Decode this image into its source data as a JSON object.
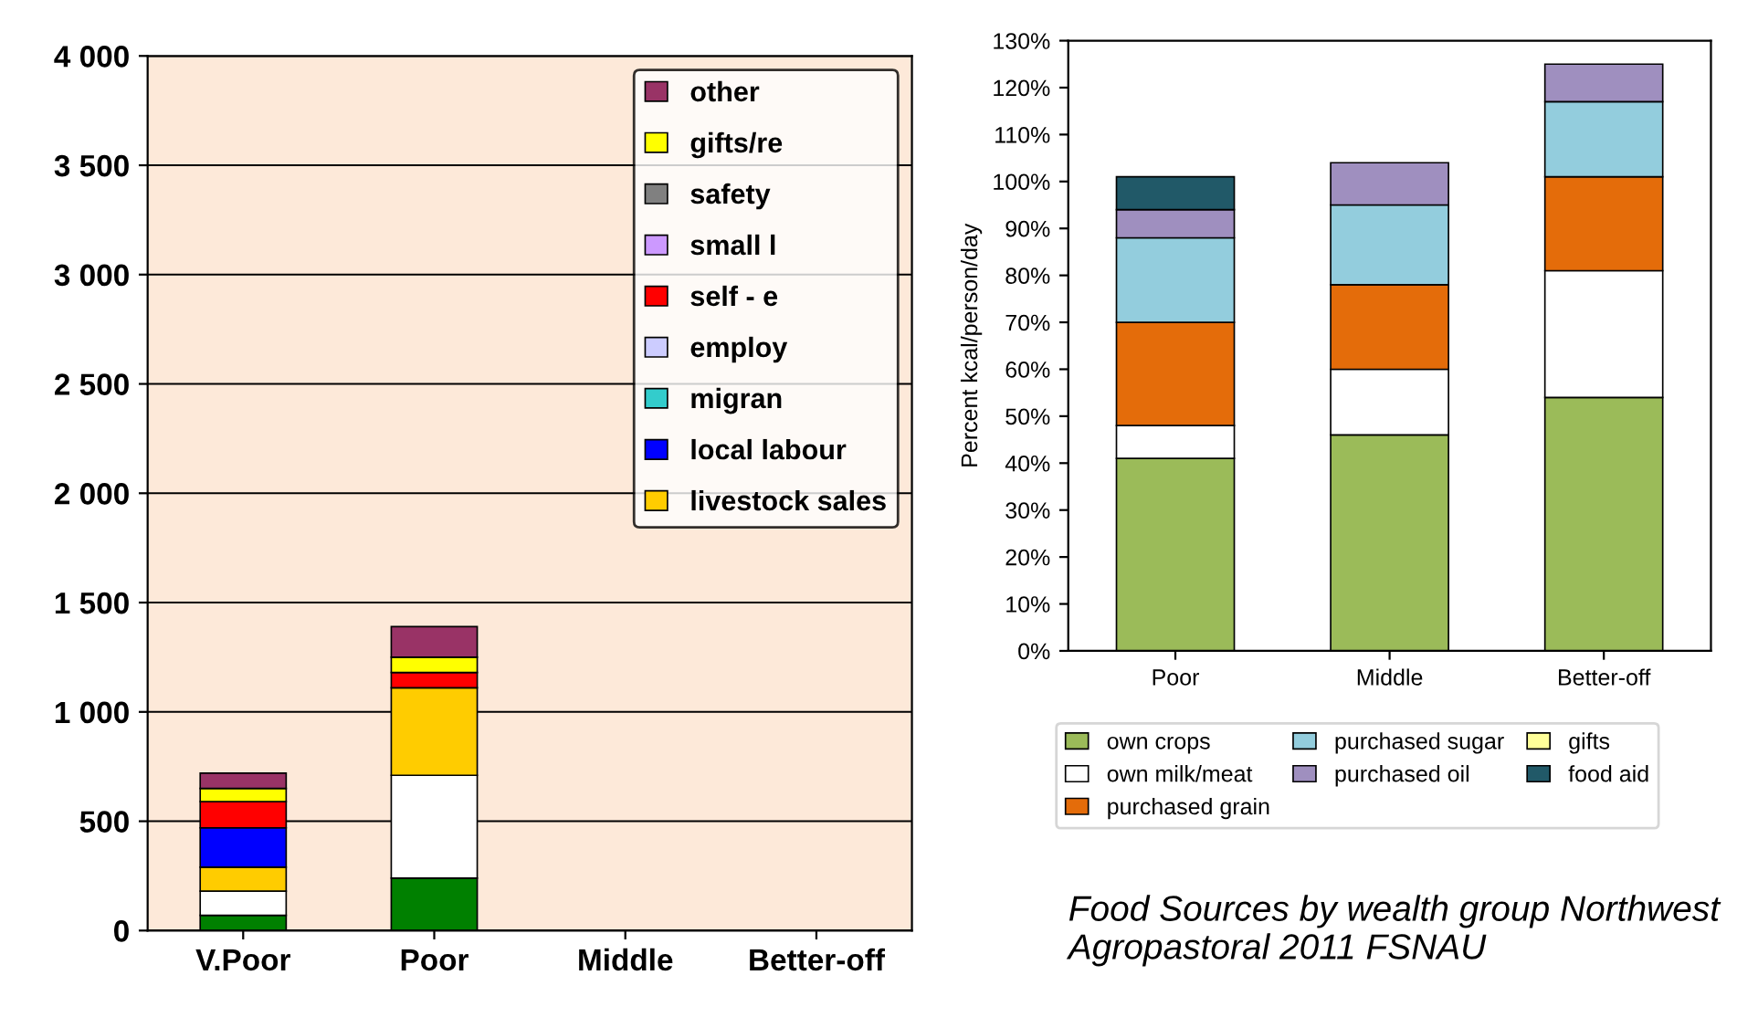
{
  "chart_data": [
    {
      "type": "bar",
      "stacked": true,
      "categories": [
        "V.Poor",
        "Poor",
        "Middle",
        "Better-off"
      ],
      "ylim": [
        0,
        4000
      ],
      "yticks": [
        0,
        500,
        {
          "value": 1000,
          "label": "1 000"
        },
        {
          "value": 1500,
          "label": "1 500"
        },
        {
          "value": 2000,
          "label": "2 000"
        },
        {
          "value": 2500,
          "label": "2 500"
        },
        {
          "value": 3000,
          "label": "3 000"
        },
        {
          "value": 3500,
          "label": "3 500"
        },
        {
          "value": 4000,
          "label": "4 000"
        }
      ],
      "grid": "y",
      "legend": "top right",
      "series": [
        {
          "color": "#008000",
          "values": [
            70,
            240,
            null,
            null
          ]
        },
        {
          "color": "#ffffff",
          "values": [
            110,
            470,
            null,
            null
          ]
        },
        {
          "name": "livestock sales",
          "color": "#ffcc00",
          "values": [
            110,
            400,
            null,
            null
          ]
        },
        {
          "name": "local labour",
          "color": "#0000ff",
          "values": [
            180,
            null,
            null,
            null
          ]
        },
        {
          "name": "migran",
          "color": "#33cccc",
          "values": [
            null,
            null,
            null,
            null
          ]
        },
        {
          "name": "employ",
          "color": "#ccccff",
          "values": [
            null,
            null,
            null,
            null
          ]
        },
        {
          "name": "self - e",
          "color": "#ff0000",
          "values": [
            120,
            70,
            null,
            null
          ]
        },
        {
          "name": "small l",
          "color": "#cc99ff",
          "values": [
            null,
            null,
            null,
            null
          ]
        },
        {
          "name": "safety",
          "color": "#808080",
          "values": [
            null,
            null,
            null,
            null
          ]
        },
        {
          "name": "gifts/re",
          "color": "#ffff00",
          "values": [
            60,
            70,
            null,
            null
          ]
        },
        {
          "name": "other",
          "color": "#993366",
          "values": [
            70,
            140,
            null,
            null
          ]
        }
      ]
    },
    {
      "type": "bar",
      "stacked": true,
      "categories": [
        "Poor",
        "Middle",
        "Better-off"
      ],
      "ylabel": "Percent kcal/person/day",
      "ylim": [
        0,
        130
      ],
      "yticks": [
        {
          "value": 0,
          "label": "0%"
        },
        {
          "value": 10,
          "label": "10%"
        },
        {
          "value": 20,
          "label": "20%"
        },
        {
          "value": 30,
          "label": "30%"
        },
        {
          "value": 40,
          "label": "40%"
        },
        {
          "value": 50,
          "label": "50%"
        },
        {
          "value": 60,
          "label": "60%"
        },
        {
          "value": 70,
          "label": "70%"
        },
        {
          "value": 80,
          "label": "80%"
        },
        {
          "value": 90,
          "label": "90%"
        },
        {
          "value": 100,
          "label": "100%"
        },
        {
          "value": 110,
          "label": "110%"
        },
        {
          "value": 120,
          "label": "120%"
        },
        {
          "value": 130,
          "label": "130%"
        }
      ],
      "legend": "bottom",
      "annotations": [
        "Food Sources by wealth group Northwest Agropastoral 2011 FSNAU"
      ],
      "series": [
        {
          "name": "own crops",
          "color": "#9bbb59",
          "values": [
            41,
            46,
            54
          ]
        },
        {
          "name": "own milk/meat",
          "color": "#ffffff",
          "values": [
            7,
            14,
            27
          ]
        },
        {
          "name": "purchased grain",
          "color": "#e46c0a",
          "values": [
            22,
            18,
            20
          ]
        },
        {
          "name": "purchased sugar",
          "color": "#93cddd",
          "values": [
            18,
            17,
            16
          ]
        },
        {
          "name": "purchased oil",
          "color": "#9f8fbf",
          "values": [
            6,
            9,
            8
          ]
        },
        {
          "name": "gifts",
          "color": "#ffff99",
          "values": [
            null,
            null,
            null
          ]
        },
        {
          "name": "food aid",
          "color": "#215968",
          "values": [
            7,
            null,
            null
          ]
        }
      ]
    }
  ]
}
